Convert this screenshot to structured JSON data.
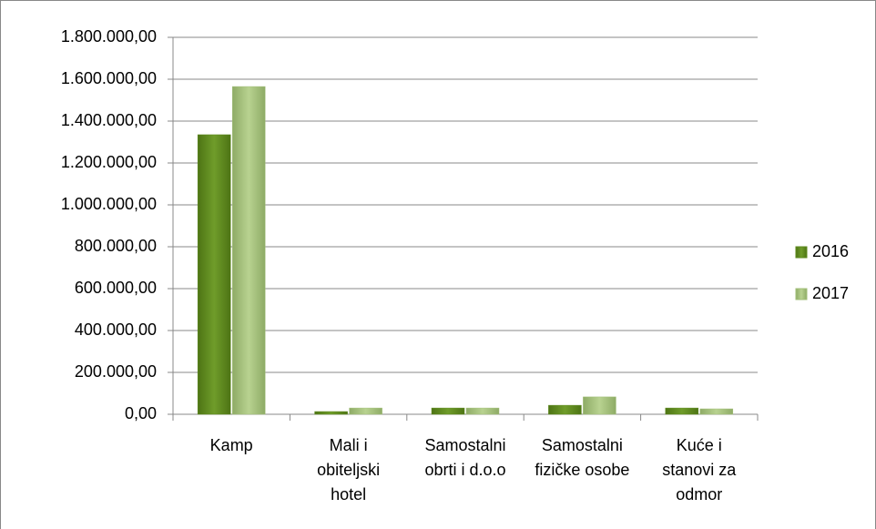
{
  "chart_data": {
    "type": "bar",
    "categories": [
      "Kamp",
      "Mali  i obiteljski hotel",
      "Samostalni obrti i d.o.o",
      "Samostalni fizičke osobe",
      "Kuće i stanovi za odmor"
    ],
    "series": [
      {
        "name": "2016",
        "color": "#5e8a1e",
        "values": [
          1335000,
          13000,
          30000,
          43000,
          30000
        ]
      },
      {
        "name": "2017",
        "color": "#a2bf78",
        "values": [
          1565000,
          30000,
          30000,
          83000,
          26000
        ]
      }
    ],
    "ylim": [
      0,
      1800000
    ],
    "yticks": [
      {
        "value": 0,
        "label": "0,00"
      },
      {
        "value": 200000,
        "label": "200.000,00"
      },
      {
        "value": 400000,
        "label": "400.000,00"
      },
      {
        "value": 600000,
        "label": "600.000,00"
      },
      {
        "value": 800000,
        "label": "800.000,00"
      },
      {
        "value": 1000000,
        "label": "1.000.000,00"
      },
      {
        "value": 1200000,
        "label": "1.200.000,00"
      },
      {
        "value": 1400000,
        "label": "1.400.000,00"
      },
      {
        "value": 1600000,
        "label": "1.600.000,00"
      },
      {
        "value": 1800000,
        "label": "1.800.000,00"
      }
    ],
    "grid": true,
    "legend": "right"
  }
}
